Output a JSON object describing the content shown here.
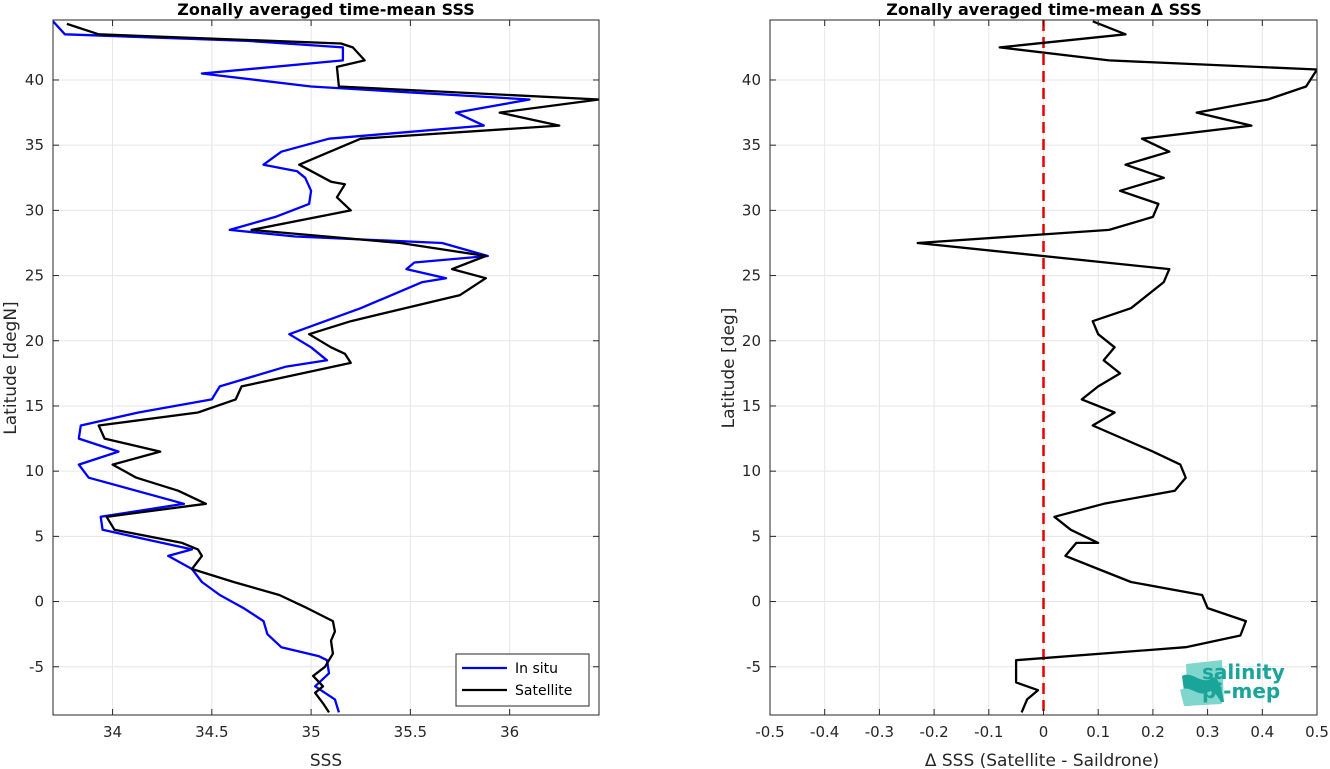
{
  "colors": {
    "in_situ": "#0000ff",
    "satellite": "#000000",
    "zero_line": "#e60000",
    "grid": "#e6e6e6",
    "logo_primary": "#1ba59a",
    "logo_light": "#7fd6cc"
  },
  "logo": {
    "line1": "salinity",
    "line2": "pi-mep",
    "icon": "salinity-wave-icon"
  },
  "chart_data": [
    {
      "type": "line",
      "title": "Zonally averaged time-mean SSS",
      "xlabel": "SSS",
      "ylabel": "Latitude [degN]",
      "xlim": [
        33.7,
        36.45
      ],
      "ylim": [
        -8.7,
        44.6
      ],
      "xticks": [
        34,
        34.5,
        35,
        35.5,
        36
      ],
      "xtick_labels": [
        "34",
        "34.5",
        "35",
        "35.5",
        "36"
      ],
      "yticks": [
        -5,
        0,
        5,
        10,
        15,
        20,
        25,
        30,
        35,
        40
      ],
      "ytick_labels": [
        "-5",
        "0",
        "5",
        "10",
        "15",
        "20",
        "25",
        "30",
        "35",
        "40"
      ],
      "grid": true,
      "legend": {
        "position": "bottom-right",
        "entries": [
          "In situ",
          "Satellite"
        ]
      },
      "series": [
        {
          "name": "In situ",
          "points": [
            [
              35.14,
              -8.5
            ],
            [
              35.12,
              -7.5
            ],
            [
              35.02,
              -6.5
            ],
            [
              35.09,
              -5.5
            ],
            [
              35.08,
              -4.5
            ],
            [
              35.04,
              -4.2
            ],
            [
              34.85,
              -3.5
            ],
            [
              34.78,
              -2.5
            ],
            [
              34.76,
              -1.5
            ],
            [
              34.66,
              -0.5
            ],
            [
              34.54,
              0.5
            ],
            [
              34.45,
              1.5
            ],
            [
              34.4,
              2.5
            ],
            [
              34.28,
              3.5
            ],
            [
              34.4,
              4.0
            ],
            [
              34.25,
              4.5
            ],
            [
              33.95,
              5.5
            ],
            [
              33.94,
              6.5
            ],
            [
              34.36,
              7.5
            ],
            [
              33.88,
              9.5
            ],
            [
              33.83,
              10.5
            ],
            [
              34.03,
              11.5
            ],
            [
              33.83,
              12.5
            ],
            [
              33.84,
              13.5
            ],
            [
              34.13,
              14.5
            ],
            [
              34.5,
              15.5
            ],
            [
              34.54,
              16.5
            ],
            [
              34.87,
              18.0
            ],
            [
              35.08,
              18.5
            ],
            [
              35.0,
              19.5
            ],
            [
              34.89,
              20.5
            ],
            [
              35.25,
              22.5
            ],
            [
              35.56,
              24.5
            ],
            [
              35.68,
              24.8
            ],
            [
              35.48,
              25.5
            ],
            [
              35.52,
              26.0
            ],
            [
              35.89,
              26.5
            ],
            [
              35.66,
              27.5
            ],
            [
              34.92,
              28.0
            ],
            [
              34.59,
              28.5
            ],
            [
              34.82,
              29.5
            ],
            [
              34.99,
              30.5
            ],
            [
              35.0,
              31.5
            ],
            [
              34.97,
              32.5
            ],
            [
              34.93,
              33.0
            ],
            [
              34.76,
              33.5
            ],
            [
              34.85,
              34.5
            ],
            [
              35.09,
              35.5
            ],
            [
              35.87,
              36.5
            ],
            [
              35.73,
              37.5
            ],
            [
              36.1,
              38.5
            ],
            [
              35.0,
              39.5
            ],
            [
              34.45,
              40.5
            ],
            [
              35.16,
              41.5
            ],
            [
              35.16,
              42.5
            ],
            [
              34.68,
              43.0
            ],
            [
              33.76,
              43.5
            ],
            [
              33.7,
              44.5
            ]
          ]
        },
        {
          "name": "Satellite",
          "points": [
            [
              35.09,
              -8.5
            ],
            [
              35.06,
              -7.8
            ],
            [
              35.02,
              -7.0
            ],
            [
              35.06,
              -6.5
            ],
            [
              35.01,
              -5.7
            ],
            [
              35.07,
              -5.0
            ],
            [
              35.11,
              -4.0
            ],
            [
              35.1,
              -3.0
            ],
            [
              35.12,
              -2.3
            ],
            [
              35.11,
              -1.5
            ],
            [
              34.98,
              -0.5
            ],
            [
              34.84,
              0.5
            ],
            [
              34.61,
              1.5
            ],
            [
              34.4,
              2.5
            ],
            [
              34.45,
              3.5
            ],
            [
              34.43,
              4.0
            ],
            [
              34.35,
              4.5
            ],
            [
              34.01,
              5.5
            ],
            [
              33.97,
              6.5
            ],
            [
              34.47,
              7.5
            ],
            [
              34.33,
              8.5
            ],
            [
              34.12,
              9.5
            ],
            [
              34.0,
              10.5
            ],
            [
              34.24,
              11.5
            ],
            [
              33.96,
              12.5
            ],
            [
              33.93,
              13.5
            ],
            [
              34.43,
              14.5
            ],
            [
              34.62,
              15.5
            ],
            [
              34.65,
              16.5
            ],
            [
              35.2,
              18.3
            ],
            [
              35.17,
              19.0
            ],
            [
              35.1,
              19.5
            ],
            [
              34.99,
              20.5
            ],
            [
              35.2,
              21.5
            ],
            [
              35.75,
              23.5
            ],
            [
              35.88,
              24.8
            ],
            [
              35.71,
              25.5
            ],
            [
              35.88,
              26.5
            ],
            [
              35.45,
              27.5
            ],
            [
              34.7,
              28.5
            ],
            [
              35.2,
              30.0
            ],
            [
              35.13,
              31.0
            ],
            [
              35.17,
              32.0
            ],
            [
              35.1,
              32.2
            ],
            [
              34.94,
              33.5
            ],
            [
              35.25,
              35.5
            ],
            [
              36.25,
              36.5
            ],
            [
              35.95,
              37.5
            ],
            [
              36.45,
              38.5
            ],
            [
              35.14,
              39.5
            ],
            [
              35.13,
              41.0
            ],
            [
              35.27,
              41.5
            ],
            [
              35.21,
              42.5
            ],
            [
              35.15,
              42.8
            ],
            [
              33.93,
              43.5
            ],
            [
              33.77,
              44.3
            ]
          ]
        }
      ]
    },
    {
      "type": "line",
      "title": "Zonally averaged time-mean Δ SSS",
      "xlabel": "Δ SSS (Satellite - Saildrone)",
      "ylabel": "Latitude [deg]",
      "xlim": [
        -0.5,
        0.5
      ],
      "ylim": [
        -8.7,
        44.6
      ],
      "xticks": [
        -0.5,
        -0.4,
        -0.3,
        -0.2,
        -0.1,
        0,
        0.1,
        0.2,
        0.3,
        0.4,
        0.5
      ],
      "xtick_labels": [
        "-0.5",
        "-0.4",
        "-0.3",
        "-0.2",
        "-0.1",
        "0",
        "0.1",
        "0.2",
        "0.3",
        "0.4",
        "0.5"
      ],
      "yticks": [
        -5,
        0,
        5,
        10,
        15,
        20,
        25,
        30,
        35,
        40
      ],
      "ytick_labels": [
        "-5",
        "0",
        "5",
        "10",
        "15",
        "20",
        "25",
        "30",
        "35",
        "40"
      ],
      "grid": true,
      "reference_line": {
        "x": 0,
        "style": "dashed"
      },
      "series": [
        {
          "name": "Satellite - Saildrone",
          "points": [
            [
              -0.04,
              -8.5
            ],
            [
              -0.03,
              -7.5
            ],
            [
              -0.01,
              -6.8
            ],
            [
              -0.05,
              -6.2
            ],
            [
              -0.05,
              -4.5
            ],
            [
              0.26,
              -3.5
            ],
            [
              0.36,
              -2.6
            ],
            [
              0.37,
              -1.5
            ],
            [
              0.3,
              -0.5
            ],
            [
              0.29,
              0.5
            ],
            [
              0.16,
              1.5
            ],
            [
              0.1,
              2.5
            ],
            [
              0.04,
              3.5
            ],
            [
              0.06,
              4.5
            ],
            [
              0.1,
              4.5
            ],
            [
              0.05,
              5.5
            ],
            [
              0.02,
              6.5
            ],
            [
              0.11,
              7.5
            ],
            [
              0.24,
              8.5
            ],
            [
              0.26,
              9.5
            ],
            [
              0.25,
              10.5
            ],
            [
              0.2,
              11.5
            ],
            [
              0.09,
              13.5
            ],
            [
              0.13,
              14.5
            ],
            [
              0.07,
              15.5
            ],
            [
              0.1,
              16.5
            ],
            [
              0.14,
              17.5
            ],
            [
              0.11,
              18.5
            ],
            [
              0.13,
              19.5
            ],
            [
              0.1,
              20.5
            ],
            [
              0.09,
              21.5
            ],
            [
              0.16,
              22.5
            ],
            [
              0.22,
              24.5
            ],
            [
              0.23,
              25.5
            ],
            [
              -0.23,
              27.5
            ],
            [
              0.12,
              28.5
            ],
            [
              0.2,
              29.5
            ],
            [
              0.21,
              30.5
            ],
            [
              0.14,
              31.5
            ],
            [
              0.22,
              32.5
            ],
            [
              0.15,
              33.5
            ],
            [
              0.23,
              34.5
            ],
            [
              0.18,
              35.5
            ],
            [
              0.38,
              36.5
            ],
            [
              0.28,
              37.5
            ],
            [
              0.41,
              38.5
            ],
            [
              0.48,
              39.5
            ],
            [
              0.5,
              40.8
            ],
            [
              0.12,
              41.5
            ],
            [
              -0.08,
              42.5
            ],
            [
              0.15,
              43.5
            ],
            [
              0.09,
              44.5
            ]
          ]
        }
      ]
    }
  ]
}
